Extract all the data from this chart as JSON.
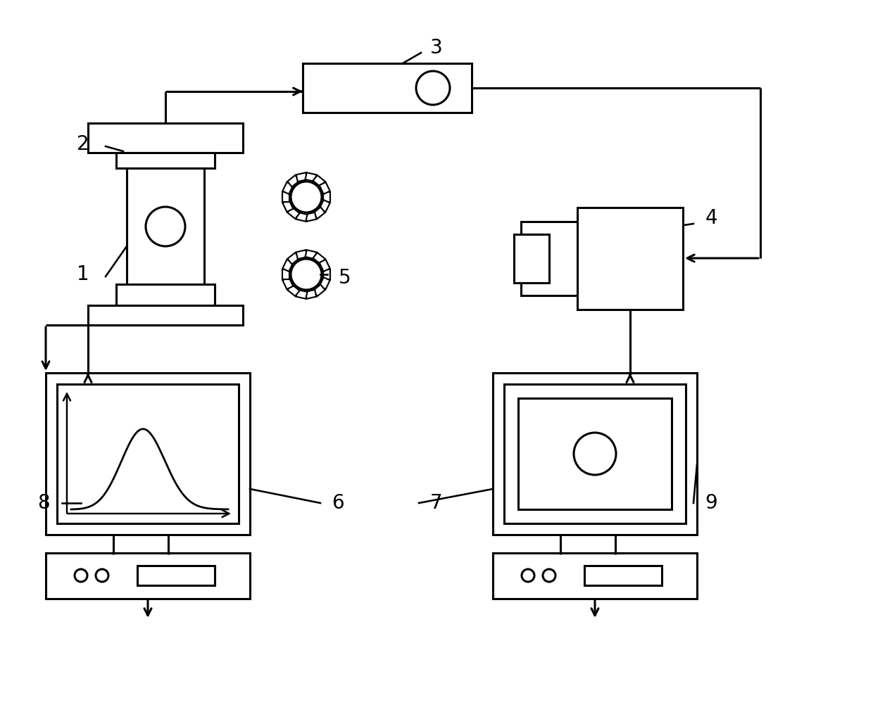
{
  "bg_color": "#ffffff",
  "line_color": "#000000",
  "lw": 2.2,
  "fig_width": 12.4,
  "fig_height": 10.22,
  "label_fontsize": 20
}
